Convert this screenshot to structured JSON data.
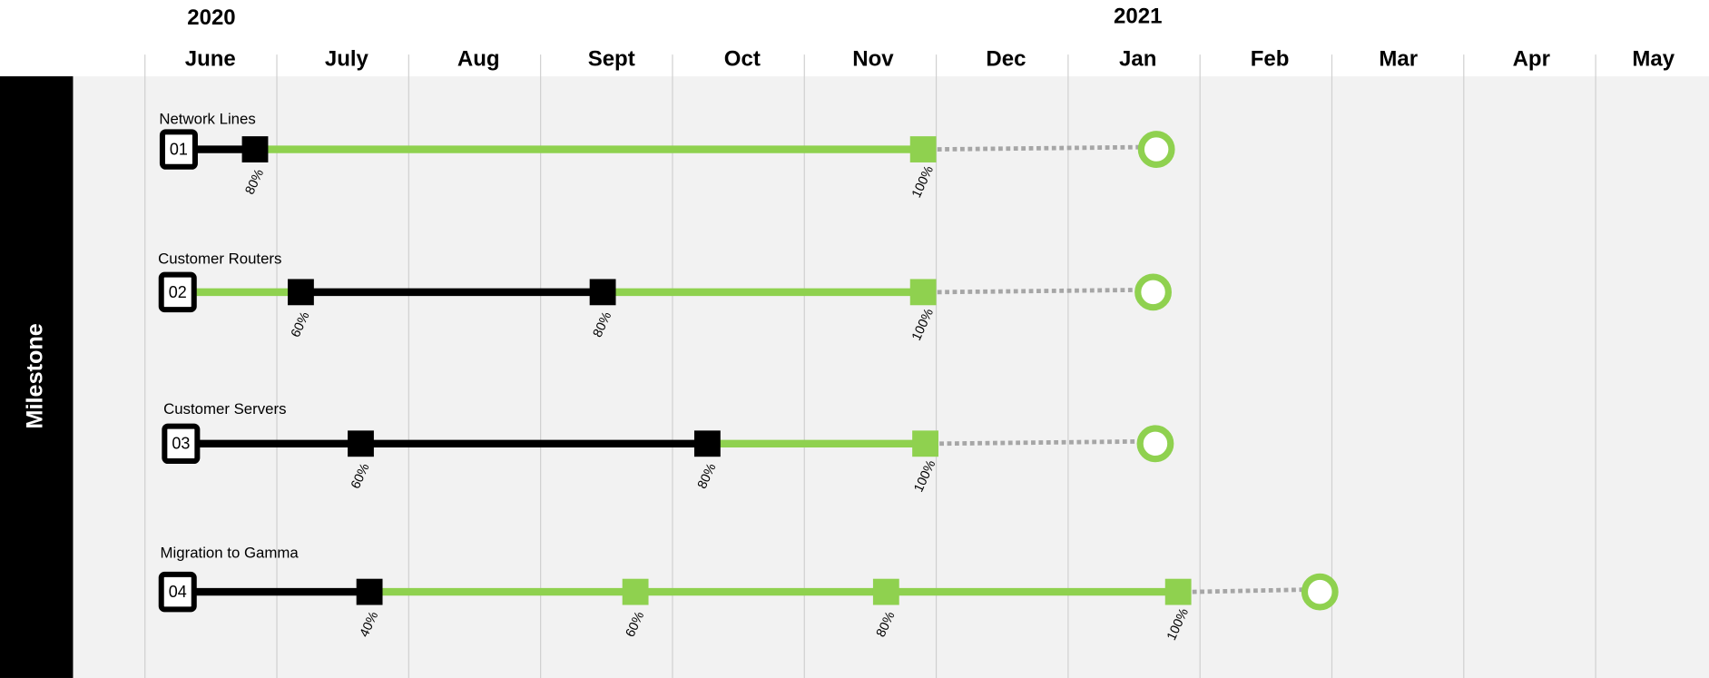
{
  "header": {
    "years": [
      "2020",
      "2021"
    ],
    "months": [
      "June",
      "July",
      "Aug",
      "Sept",
      "Oct",
      "Nov",
      "Dec",
      "Jan",
      "Feb",
      "Mar",
      "Apr",
      "May"
    ]
  },
  "side_label": "Milestone",
  "rows": [
    {
      "number": "01",
      "title": "Network Lines",
      "markers": [
        "80%",
        "100%"
      ]
    },
    {
      "number": "02",
      "title": "Customer Routers",
      "markers": [
        "60%",
        "80%",
        "100%"
      ]
    },
    {
      "number": "03",
      "title": "Customer Servers",
      "markers": [
        "60%",
        "80%",
        "100%"
      ]
    },
    {
      "number": "04",
      "title": "Migration to Gamma",
      "markers": [
        "40%",
        "60%",
        "80%",
        "100%"
      ]
    }
  ]
}
